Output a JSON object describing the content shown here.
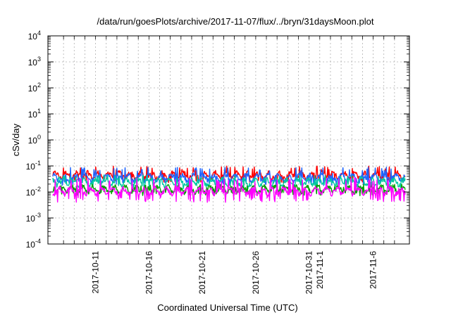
{
  "chart_data": {
    "type": "line",
    "title": "/data/run/goesPlots/archive/2017-11-07/flux/../bryn/31daysMoon.plot",
    "xlabel": "Coordinated Universal Time (UTC)",
    "ylabel": "cSv/day",
    "yscale": "log",
    "ylim": [
      0.0001,
      10000
    ],
    "xlim": [
      "2017-10-07",
      "2017-11-09"
    ],
    "grid": true,
    "legend": "none",
    "y_ticks": [
      {
        "base": "10",
        "exp": "-4",
        "value": 0.0001
      },
      {
        "base": "10",
        "exp": "-3",
        "value": 0.001
      },
      {
        "base": "10",
        "exp": "-2",
        "value": 0.01
      },
      {
        "base": "10",
        "exp": "-1",
        "value": 0.1
      },
      {
        "base": "10",
        "exp": "0",
        "value": 1
      },
      {
        "base": "10",
        "exp": "1",
        "value": 10
      },
      {
        "base": "10",
        "exp": "2",
        "value": 100
      },
      {
        "base": "10",
        "exp": "3",
        "value": 1000
      },
      {
        "base": "10",
        "exp": "4",
        "value": 10000
      }
    ],
    "x_ticks": [
      {
        "label": "2017-10-11",
        "date": "2017-10-11"
      },
      {
        "label": "2017-10-16",
        "date": "2017-10-16"
      },
      {
        "label": "2017-10-21",
        "date": "2017-10-21"
      },
      {
        "label": "2017-10-26",
        "date": "2017-10-26"
      },
      {
        "label": "2017-10-31",
        "date": "2017-10-31"
      },
      {
        "label": "2017-11-1",
        "date": "2017-11-01"
      },
      {
        "label": "2017-11-6",
        "date": "2017-11-06"
      }
    ],
    "series": [
      {
        "color": "#ff0000",
        "base": 0.045,
        "spike": 0.1,
        "dip": 0.028
      },
      {
        "color": "#1e64ff",
        "base": 0.036,
        "spike": 0.09,
        "dip": 0.022
      },
      {
        "color": "#00c8a0",
        "base": 0.024,
        "spike": 0.045,
        "dip": 0.016
      },
      {
        "color": "#00a000",
        "base": 0.013,
        "spike": 0.02,
        "dip": 0.009
      },
      {
        "color": "#ff00ff",
        "base": 0.011,
        "spike": 0.035,
        "dip": 0.005
      }
    ]
  }
}
